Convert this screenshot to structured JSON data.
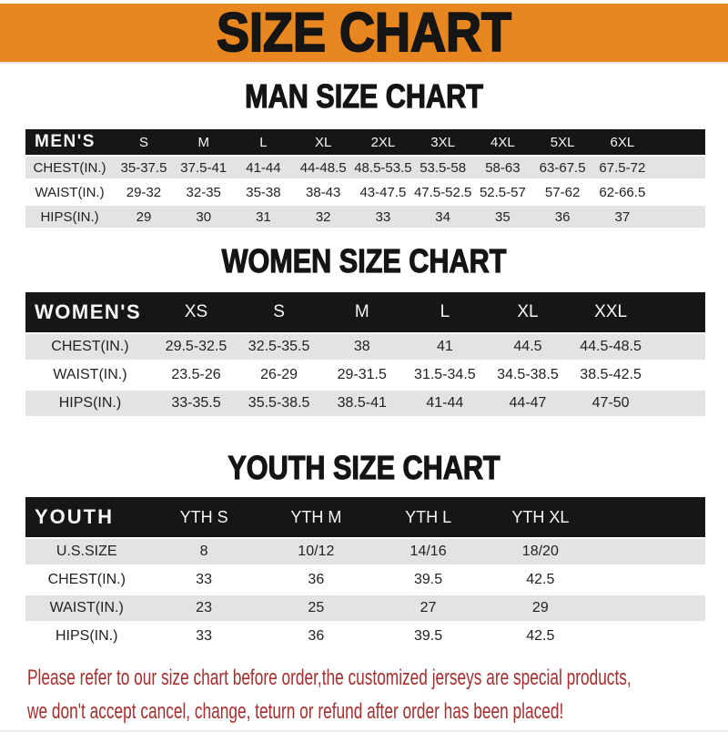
{
  "banner": {
    "title": "SIZE CHART"
  },
  "theme": {
    "banner_bg": "#E8861F",
    "bar_bg": "#161616",
    "bar_text": "#F7F7F7",
    "stripe": "#E3E3E3",
    "text": "#222222",
    "footer_red": "#A52F2F"
  },
  "sections": [
    {
      "id": "men",
      "heading": "MAN SIZE CHART",
      "table": {
        "label": "MEN'S",
        "columns": [
          "S",
          "M",
          "L",
          "XL",
          "2XL",
          "3XL",
          "4XL",
          "5XL",
          "6XL"
        ],
        "rows": [
          {
            "label": "CHEST(IN.)",
            "values": [
              "35-37.5",
              "37.5-41",
              "41-44",
              "44-48.5",
              "48.5-53.5",
              "53.5-58",
              "58-63",
              "63-67.5",
              "67.5-72"
            ]
          },
          {
            "label": "WAIST(IN.)",
            "values": [
              "29-32",
              "32-35",
              "35-38",
              "38-43",
              "43-47.5",
              "47.5-52.5",
              "52.5-57",
              "57-62",
              "62-66.5"
            ]
          },
          {
            "label": "HIPS(IN.)",
            "values": [
              "29",
              "30",
              "31",
              "32",
              "33",
              "34",
              "35",
              "36",
              "37"
            ]
          }
        ]
      }
    },
    {
      "id": "women",
      "heading": "WOMEN SIZE CHART",
      "table": {
        "label": "WOMEN'S",
        "columns": [
          "XS",
          "S",
          "M",
          "L",
          "XL",
          "XXL"
        ],
        "rows": [
          {
            "label": "CHEST(IN.)",
            "values": [
              "29.5-32.5",
              "32.5-35.5",
              "38",
              "41",
              "44.5",
              "44.5-48.5"
            ]
          },
          {
            "label": "WAIST(IN.)",
            "values": [
              "23.5-26",
              "26-29",
              "29-31.5",
              "31.5-34.5",
              "34.5-38.5",
              "38.5-42.5"
            ]
          },
          {
            "label": "HIPS(IN.)",
            "values": [
              "33-35.5",
              "35.5-38.5",
              "38.5-41",
              "41-44",
              "44-47",
              "47-50"
            ]
          }
        ]
      }
    },
    {
      "id": "youth",
      "heading": "YOUTH SIZE CHART",
      "table": {
        "label": "YOUTH",
        "columns": [
          "YTH S",
          "YTH M",
          "YTH L",
          "YTH XL"
        ],
        "rows": [
          {
            "label": "U.S.SIZE",
            "values": [
              "8",
              "10/12",
              "14/16",
              "18/20"
            ]
          },
          {
            "label": "CHEST(IN.)",
            "values": [
              "33",
              "36",
              "39.5",
              "42.5"
            ]
          },
          {
            "label": "WAIST(IN.)",
            "values": [
              "23",
              "25",
              "27",
              "29"
            ]
          },
          {
            "label": "HIPS(IN.)",
            "values": [
              "33",
              "36",
              "39.5",
              "42.5"
            ]
          }
        ]
      }
    }
  ],
  "footer": {
    "lines": [
      "Please refer to our size chart before order,the customized jerseys are special products,",
      "we don't accept cancel, change, teturn or refund after order has been placed!"
    ]
  }
}
